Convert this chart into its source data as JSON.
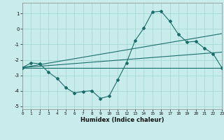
{
  "xlabel": "Humidex (Indice chaleur)",
  "bg_color": "#c8ecec",
  "grid_color": "#a8d8d4",
  "line_color": "#1a6e6a",
  "xlim": [
    0,
    23
  ],
  "ylim": [
    -5.2,
    1.7
  ],
  "yticks": [
    -5,
    -4,
    -3,
    -2,
    -1,
    0,
    1
  ],
  "xticks": [
    0,
    1,
    2,
    3,
    4,
    5,
    6,
    7,
    8,
    9,
    10,
    11,
    12,
    13,
    14,
    15,
    16,
    17,
    18,
    19,
    20,
    21,
    22,
    23
  ],
  "line1_x": [
    0,
    1,
    2,
    3,
    4,
    5,
    6,
    7,
    8,
    9,
    10,
    11,
    12,
    13,
    14,
    15,
    16,
    17,
    18,
    19,
    20,
    21,
    22,
    23
  ],
  "line1_y": [
    -2.5,
    -2.2,
    -2.25,
    -2.8,
    -3.2,
    -3.8,
    -4.15,
    -4.05,
    -4.0,
    -4.5,
    -4.35,
    -3.3,
    -2.2,
    -0.75,
    0.05,
    1.1,
    1.15,
    0.5,
    -0.35,
    -0.85,
    -0.8,
    -1.25,
    -1.6,
    -2.5
  ],
  "line2_x": [
    0,
    23
  ],
  "line2_y": [
    -2.5,
    -2.5
  ],
  "line3_x": [
    0,
    23
  ],
  "line3_y": [
    -2.5,
    -1.5
  ],
  "line4_x": [
    0,
    23
  ],
  "line4_y": [
    -2.5,
    -0.3
  ]
}
